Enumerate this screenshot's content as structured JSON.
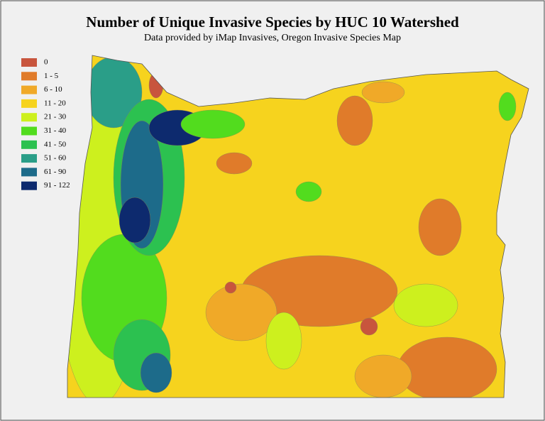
{
  "title": "Number of Unique Invasive Species by HUC 10 Watershed",
  "subtitle": "Data provided by iMap Invasives, Oregon Invasive Species Map",
  "legend": [
    {
      "label": "0",
      "color": "#c8553d"
    },
    {
      "label": "1 - 5",
      "color": "#e07b2a"
    },
    {
      "label": "6 - 10",
      "color": "#f0a928"
    },
    {
      "label": "11 - 20",
      "color": "#f6d31e"
    },
    {
      "label": "21 - 30",
      "color": "#cdf01e"
    },
    {
      "label": "31 - 40",
      "color": "#52dc1e"
    },
    {
      "label": "41 - 50",
      "color": "#2cc150"
    },
    {
      "label": "51 - 60",
      "color": "#2a9e88"
    },
    {
      "label": "61 - 90",
      "color": "#1d6b8a"
    },
    {
      "label": "91 - 122",
      "color": "#0d2a6e"
    }
  ]
}
